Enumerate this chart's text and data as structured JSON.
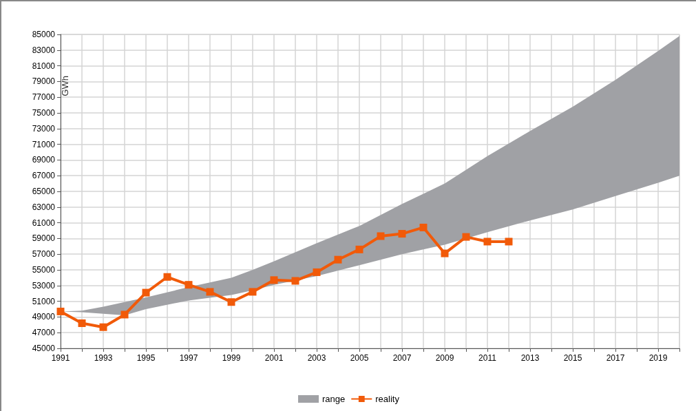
{
  "chart_data": {
    "type": "line",
    "ylabel": "GWh",
    "xlim": [
      1991,
      2020
    ],
    "xticks": [
      1991,
      {
        "value": 1992,
        "label": null
      },
      1993,
      {
        "value": 1994,
        "label": null
      },
      1995,
      {
        "value": 1996,
        "label": null
      },
      1997,
      {
        "value": 1998,
        "label": null
      },
      1999,
      {
        "value": 2000,
        "label": null
      },
      2001,
      {
        "value": 2002,
        "label": null
      },
      2003,
      {
        "value": 2004,
        "label": null
      },
      2005,
      {
        "value": 2006,
        "label": null
      },
      2007,
      {
        "value": 2008,
        "label": null
      },
      2009,
      {
        "value": 2010,
        "label": null
      },
      2011,
      {
        "value": 2012,
        "label": null
      },
      2013,
      {
        "value": 2014,
        "label": null
      },
      2015,
      {
        "value": 2016,
        "label": null
      },
      2017,
      {
        "value": 2018,
        "label": null
      },
      2019,
      {
        "value": 2020,
        "label": null
      }
    ],
    "ylim": [
      45000,
      85000
    ],
    "yticks": [
      45000,
      47000,
      49000,
      51000,
      53000,
      55000,
      57000,
      59000,
      61000,
      63000,
      65000,
      67000,
      69000,
      71000,
      73000,
      75000,
      77000,
      79000,
      81000,
      83000,
      85000
    ],
    "grid": true,
    "legend": "bottom",
    "series": [
      {
        "name": "range",
        "type": "area",
        "color": "#a0a1a5",
        "x": [
          1991,
          1992,
          1993,
          1994,
          1995,
          1997,
          1999,
          2000,
          2001,
          2003,
          2005,
          2007,
          2008,
          2009,
          2011,
          2013,
          2015,
          2017,
          2019,
          2020
        ],
        "values": [
          null,
          null,
          null,
          null,
          null,
          null,
          null,
          null,
          null,
          null,
          null,
          null,
          null,
          null,
          null,
          null,
          null,
          null,
          null,
          null
        ],
        "lower": [
          49700,
          49600,
          49400,
          49200,
          50000,
          51100,
          51800,
          52400,
          53100,
          54200,
          55600,
          57000,
          57600,
          58200,
          59800,
          61300,
          62700,
          64400,
          66100,
          67000
        ],
        "upper": [
          49700,
          49800,
          50300,
          50900,
          51500,
          52800,
          54000,
          55000,
          56100,
          58400,
          60600,
          63400,
          64700,
          66000,
          69500,
          72700,
          75800,
          79200,
          82900,
          84800
        ]
      },
      {
        "name": "reality",
        "color": "#f15a09",
        "marker": "square",
        "line_style": "solid",
        "x": [
          1991,
          1992,
          1993,
          1994,
          1995,
          1996,
          1997,
          1998,
          1999,
          2000,
          2001,
          2002,
          2003,
          2004,
          2005,
          2006,
          2007,
          2008,
          2009,
          2010,
          2011,
          2012
        ],
        "values": [
          49700,
          48200,
          47700,
          49300,
          52100,
          54100,
          53100,
          52200,
          50900,
          52200,
          53700,
          53600,
          54700,
          56300,
          57600,
          59300,
          59600,
          60400,
          57100,
          59200,
          58600,
          58600
        ]
      }
    ]
  }
}
